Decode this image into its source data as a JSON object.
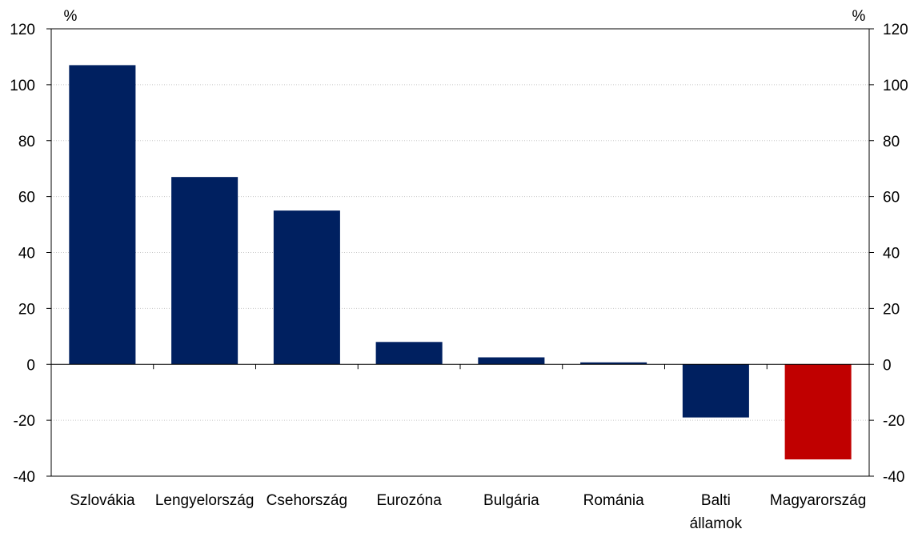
{
  "chart_data": {
    "type": "bar",
    "title": "",
    "xlabel": "",
    "ylabel": "",
    "left_unit": "%",
    "right_unit": "%",
    "categories": [
      [
        "Szlovákia"
      ],
      [
        "Lengyelország"
      ],
      [
        "Csehország"
      ],
      [
        "Eurozóna"
      ],
      [
        "Bulgária"
      ],
      [
        "Románia"
      ],
      [
        "Balti",
        "államok"
      ],
      [
        "Magyarország"
      ]
    ],
    "values": [
      107,
      67,
      55,
      8,
      2.5,
      0.7,
      -19,
      -34
    ],
    "bar_colors": [
      "#002060",
      "#002060",
      "#002060",
      "#002060",
      "#002060",
      "#002060",
      "#002060",
      "#C00000"
    ],
    "ylim": [
      -40,
      120
    ],
    "yticks": [
      -40,
      -20,
      0,
      20,
      40,
      60,
      80,
      100,
      120
    ],
    "grid": true,
    "secondary_axis": true
  }
}
